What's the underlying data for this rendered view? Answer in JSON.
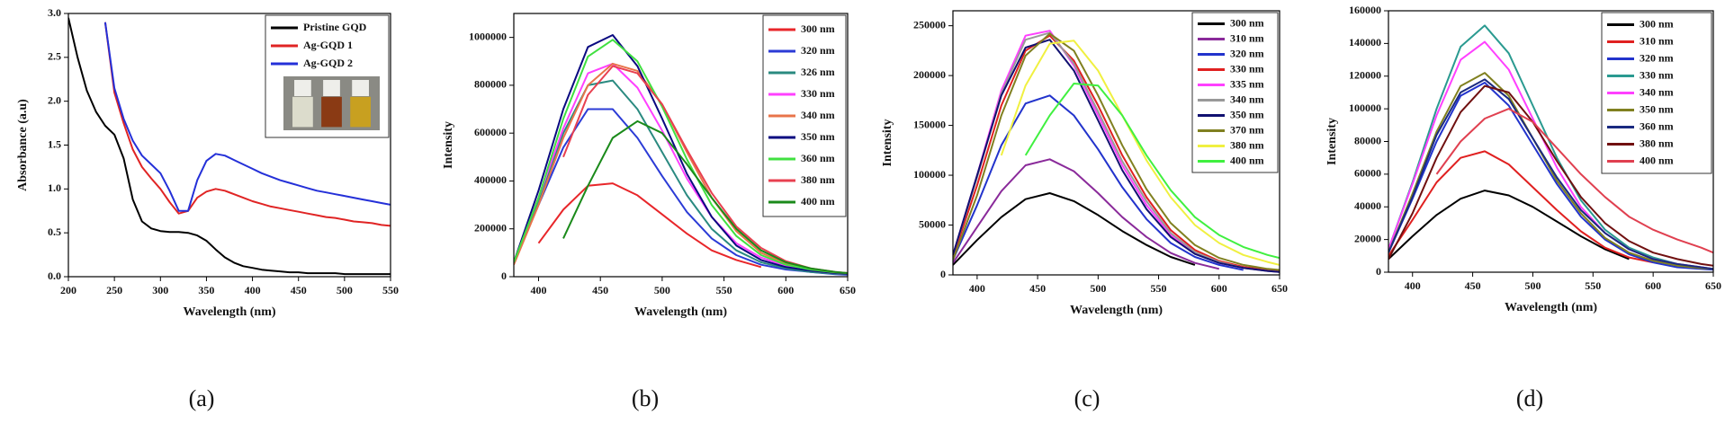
{
  "chart_data": [
    {
      "type": "line",
      "caption": "(a)",
      "xlabel": "Wavelength (nm)",
      "ylabel": "Absorbance (a.u)",
      "x": [
        200,
        210,
        220,
        230,
        240,
        250,
        260,
        270,
        280,
        290,
        300,
        310,
        320,
        330,
        340,
        350,
        360,
        370,
        380,
        390,
        400,
        410,
        420,
        430,
        440,
        450,
        460,
        470,
        480,
        490,
        500,
        510,
        520,
        530,
        540,
        550
      ],
      "xlim": [
        200,
        550
      ],
      "xticks": [
        200,
        250,
        300,
        350,
        400,
        450,
        500,
        550
      ],
      "ylim": [
        0,
        3
      ],
      "yticks": [
        {
          "value": 0,
          "label": "0.0"
        },
        0.5,
        {
          "value": 1,
          "label": "1.0"
        },
        1.5,
        {
          "value": 2,
          "label": "2.0"
        },
        2.5,
        {
          "value": 3,
          "label": "3.0"
        }
      ],
      "legend": "upper right",
      "series": [
        {
          "name": "Pristine GQD",
          "color": "#000000",
          "values": [
            2.95,
            2.5,
            2.12,
            1.88,
            1.72,
            1.62,
            1.35,
            0.88,
            0.63,
            0.55,
            0.52,
            0.51,
            0.51,
            0.5,
            0.47,
            0.41,
            0.31,
            0.22,
            0.16,
            0.12,
            0.1,
            0.08,
            0.07,
            0.06,
            0.05,
            0.05,
            0.04,
            0.04,
            0.04,
            0.04,
            0.03,
            0.03,
            0.03,
            0.03,
            0.03,
            0.03
          ]
        },
        {
          "name": "Ag-GQD 1",
          "color": "#e02424",
          "values": [
            null,
            null,
            null,
            null,
            2.9,
            2.1,
            1.75,
            1.45,
            1.25,
            1.12,
            1.0,
            0.85,
            0.72,
            0.75,
            0.9,
            0.97,
            1.0,
            0.98,
            0.94,
            0.9,
            0.86,
            0.83,
            0.8,
            0.78,
            0.76,
            0.74,
            0.72,
            0.7,
            0.68,
            0.67,
            0.65,
            0.63,
            0.62,
            0.61,
            0.59,
            0.58
          ]
        },
        {
          "name": "Ag-GQD 2",
          "color": "#2430d8",
          "values": [
            null,
            null,
            null,
            null,
            2.9,
            2.15,
            1.8,
            1.55,
            1.38,
            1.28,
            1.18,
            0.98,
            0.75,
            0.75,
            1.1,
            1.32,
            1.4,
            1.38,
            1.33,
            1.28,
            1.23,
            1.18,
            1.14,
            1.1,
            1.07,
            1.04,
            1.01,
            0.98,
            0.96,
            0.94,
            0.92,
            0.9,
            0.88,
            0.86,
            0.84,
            0.82
          ]
        }
      ]
    },
    {
      "type": "line",
      "caption": "(b)",
      "xlabel": "Wavelength (nm)",
      "ylabel": "Intensity",
      "x": [
        380,
        400,
        420,
        440,
        460,
        480,
        500,
        520,
        540,
        560,
        580,
        600,
        620,
        640,
        650
      ],
      "xlim": [
        380,
        650
      ],
      "xticks": [
        400,
        450,
        500,
        550,
        600,
        650
      ],
      "ylim": [
        0,
        1100000
      ],
      "yticks": [
        0,
        200000,
        400000,
        600000,
        800000,
        1000000
      ],
      "legend": "upper right",
      "series": [
        {
          "name": "300 nm",
          "color": "#e8262a",
          "values": [
            null,
            140000,
            280000,
            380000,
            390000,
            340000,
            260000,
            180000,
            110000,
            70000,
            40000,
            null,
            null,
            null,
            null
          ]
        },
        {
          "name": "320 nm",
          "color": "#2b3bd6",
          "values": [
            60000,
            300000,
            540000,
            700000,
            700000,
            580000,
            420000,
            270000,
            160000,
            90000,
            50000,
            30000,
            20000,
            10000,
            8000
          ]
        },
        {
          "name": "326 nm",
          "color": "#2a8a80",
          "values": [
            60000,
            320000,
            600000,
            800000,
            820000,
            700000,
            520000,
            340000,
            200000,
            110000,
            60000,
            35000,
            20000,
            12000,
            10000
          ]
        },
        {
          "name": "330 nm",
          "color": "#ff40ff",
          "values": [
            60000,
            330000,
            620000,
            850000,
            890000,
            790000,
            610000,
            410000,
            250000,
            140000,
            80000,
            45000,
            25000,
            15000,
            12000
          ]
        },
        {
          "name": "340 nm",
          "color": "#e8744a",
          "values": [
            50000,
            300000,
            580000,
            800000,
            890000,
            860000,
            720000,
            520000,
            330000,
            190000,
            100000,
            55000,
            30000,
            18000,
            15000
          ]
        },
        {
          "name": "350 nm",
          "color": "#0a0a80",
          "values": [
            60000,
            360000,
            700000,
            960000,
            1010000,
            880000,
            660000,
            430000,
            250000,
            130000,
            70000,
            40000,
            25000,
            15000,
            12000
          ]
        },
        {
          "name": "360 nm",
          "color": "#40e040",
          "values": [
            60000,
            330000,
            660000,
            920000,
            990000,
            900000,
            710000,
            490000,
            300000,
            170000,
            90000,
            50000,
            30000,
            18000,
            15000
          ]
        },
        {
          "name": "380 nm",
          "color": "#e84050",
          "values": [
            null,
            null,
            500000,
            760000,
            880000,
            850000,
            720000,
            530000,
            350000,
            210000,
            120000,
            65000,
            35000,
            20000,
            15000
          ]
        },
        {
          "name": "400 nm",
          "color": "#1a8a1a",
          "values": [
            null,
            null,
            160000,
            380000,
            580000,
            650000,
            600000,
            470000,
            330000,
            200000,
            110000,
            60000,
            35000,
            20000,
            15000
          ]
        }
      ]
    },
    {
      "type": "line",
      "caption": "(c)",
      "xlabel": "Wavelength (nm)",
      "ylabel": "Intensity",
      "x": [
        380,
        400,
        420,
        440,
        460,
        480,
        500,
        520,
        540,
        560,
        580,
        600,
        620,
        640,
        650
      ],
      "xlim": [
        380,
        650
      ],
      "xticks": [
        400,
        450,
        500,
        550,
        600,
        650
      ],
      "ylim": [
        0,
        265000
      ],
      "yticks": [
        0,
        50000,
        100000,
        150000,
        200000,
        250000
      ],
      "legend": "upper right",
      "series": [
        {
          "name": "300 nm",
          "color": "#000000",
          "values": [
            10000,
            35000,
            58000,
            76000,
            82000,
            74000,
            60000,
            44000,
            30000,
            18000,
            10000,
            null,
            null,
            null,
            null
          ]
        },
        {
          "name": "310 nm",
          "color": "#8a2a9a",
          "values": [
            12000,
            48000,
            84000,
            110000,
            116000,
            104000,
            82000,
            58000,
            38000,
            22000,
            12000,
            6000,
            null,
            null,
            null
          ]
        },
        {
          "name": "320 nm",
          "color": "#2233cc",
          "values": [
            15000,
            70000,
            130000,
            172000,
            180000,
            160000,
            126000,
            88000,
            56000,
            32000,
            18000,
            10000,
            5000,
            null,
            null
          ]
        },
        {
          "name": "330 nm",
          "color": "#e02020",
          "values": [
            18000,
            90000,
            170000,
            225000,
            240000,
            215000,
            170000,
            120000,
            78000,
            45000,
            25000,
            14000,
            8000,
            5000,
            4000
          ]
        },
        {
          "name": "335 nm",
          "color": "#ff40ff",
          "values": [
            20000,
            100000,
            185000,
            240000,
            245000,
            210000,
            160000,
            110000,
            70000,
            40000,
            22000,
            12000,
            7000,
            4000,
            3000
          ]
        },
        {
          "name": "340 nm",
          "color": "#999999",
          "values": [
            20000,
            98000,
            182000,
            236000,
            243000,
            212000,
            164000,
            114000,
            74000,
            42000,
            23000,
            13000,
            7000,
            4000,
            3000
          ]
        },
        {
          "name": "350 nm",
          "color": "#101070",
          "values": [
            20000,
            100000,
            180000,
            228000,
            236000,
            205000,
            155000,
            105000,
            66000,
            38000,
            21000,
            12000,
            7000,
            4000,
            3000
          ]
        },
        {
          "name": "370 nm",
          "color": "#808020",
          "values": [
            15000,
            80000,
            160000,
            220000,
            242000,
            225000,
            180000,
            130000,
            86000,
            52000,
            30000,
            17000,
            10000,
            6000,
            5000
          ]
        },
        {
          "name": "380 nm",
          "color": "#f0f040",
          "values": [
            null,
            null,
            120000,
            190000,
            232000,
            235000,
            205000,
            160000,
            115000,
            78000,
            50000,
            32000,
            20000,
            13000,
            10000
          ]
        },
        {
          "name": "400 nm",
          "color": "#40f040",
          "values": [
            null,
            null,
            null,
            120000,
            160000,
            192000,
            190000,
            160000,
            120000,
            85000,
            58000,
            40000,
            28000,
            20000,
            17000
          ]
        }
      ]
    },
    {
      "type": "line",
      "caption": "(d)",
      "xlabel": "Wavelength (nm)",
      "ylabel": "Intensity",
      "x": [
        380,
        400,
        420,
        440,
        460,
        480,
        500,
        520,
        540,
        560,
        580,
        600,
        620,
        640,
        650
      ],
      "xlim": [
        380,
        650
      ],
      "xticks": [
        400,
        450,
        500,
        550,
        600,
        650
      ],
      "ylim": [
        0,
        160000
      ],
      "yticks": [
        0,
        20000,
        40000,
        60000,
        80000,
        100000,
        120000,
        140000,
        160000
      ],
      "legend": "upper right",
      "series": [
        {
          "name": "300 nm",
          "color": "#000000",
          "values": [
            8000,
            22000,
            35000,
            45000,
            50000,
            47000,
            40000,
            31000,
            22000,
            14000,
            8000,
            null,
            null,
            null,
            null
          ]
        },
        {
          "name": "310 nm",
          "color": "#e02020",
          "values": [
            10000,
            32000,
            55000,
            70000,
            74000,
            66000,
            52000,
            38000,
            25000,
            15000,
            9000,
            6000,
            null,
            null,
            null
          ]
        },
        {
          "name": "320 nm",
          "color": "#2233cc",
          "values": [
            12000,
            45000,
            80000,
            108000,
            116000,
            102000,
            78000,
            54000,
            34000,
            20000,
            11000,
            6000,
            3000,
            2000,
            1500
          ]
        },
        {
          "name": "330 nm",
          "color": "#2a9a90",
          "values": [
            14000,
            55000,
            100000,
            138000,
            151000,
            134000,
            102000,
            70000,
            44000,
            26000,
            15000,
            9000,
            5000,
            3000,
            2000
          ]
        },
        {
          "name": "340 nm",
          "color": "#ff40ff",
          "values": [
            14000,
            54000,
            96000,
            130000,
            141000,
            124000,
            94000,
            64000,
            40000,
            24000,
            14000,
            8000,
            5000,
            3000,
            2000
          ]
        },
        {
          "name": "350 nm",
          "color": "#808020",
          "values": [
            12000,
            48000,
            86000,
            114000,
            122000,
            108000,
            82000,
            56000,
            36000,
            21000,
            12000,
            7000,
            4000,
            2500,
            2000
          ]
        },
        {
          "name": "360 nm",
          "color": "#1a2a80",
          "values": [
            12000,
            46000,
            84000,
            110000,
            118000,
            106000,
            82000,
            58000,
            38000,
            24000,
            14000,
            8000,
            5000,
            3000,
            2000
          ]
        },
        {
          "name": "380 nm",
          "color": "#701010",
          "values": [
            8000,
            36000,
            70000,
            98000,
            114000,
            110000,
            92000,
            68000,
            46000,
            30000,
            19000,
            12000,
            8000,
            5000,
            4000
          ]
        },
        {
          "name": "400 nm",
          "color": "#e04050",
          "values": [
            null,
            null,
            60000,
            80000,
            94000,
            100000,
            92000,
            76000,
            60000,
            46000,
            34000,
            26000,
            20000,
            15000,
            12000
          ]
        }
      ]
    }
  ]
}
